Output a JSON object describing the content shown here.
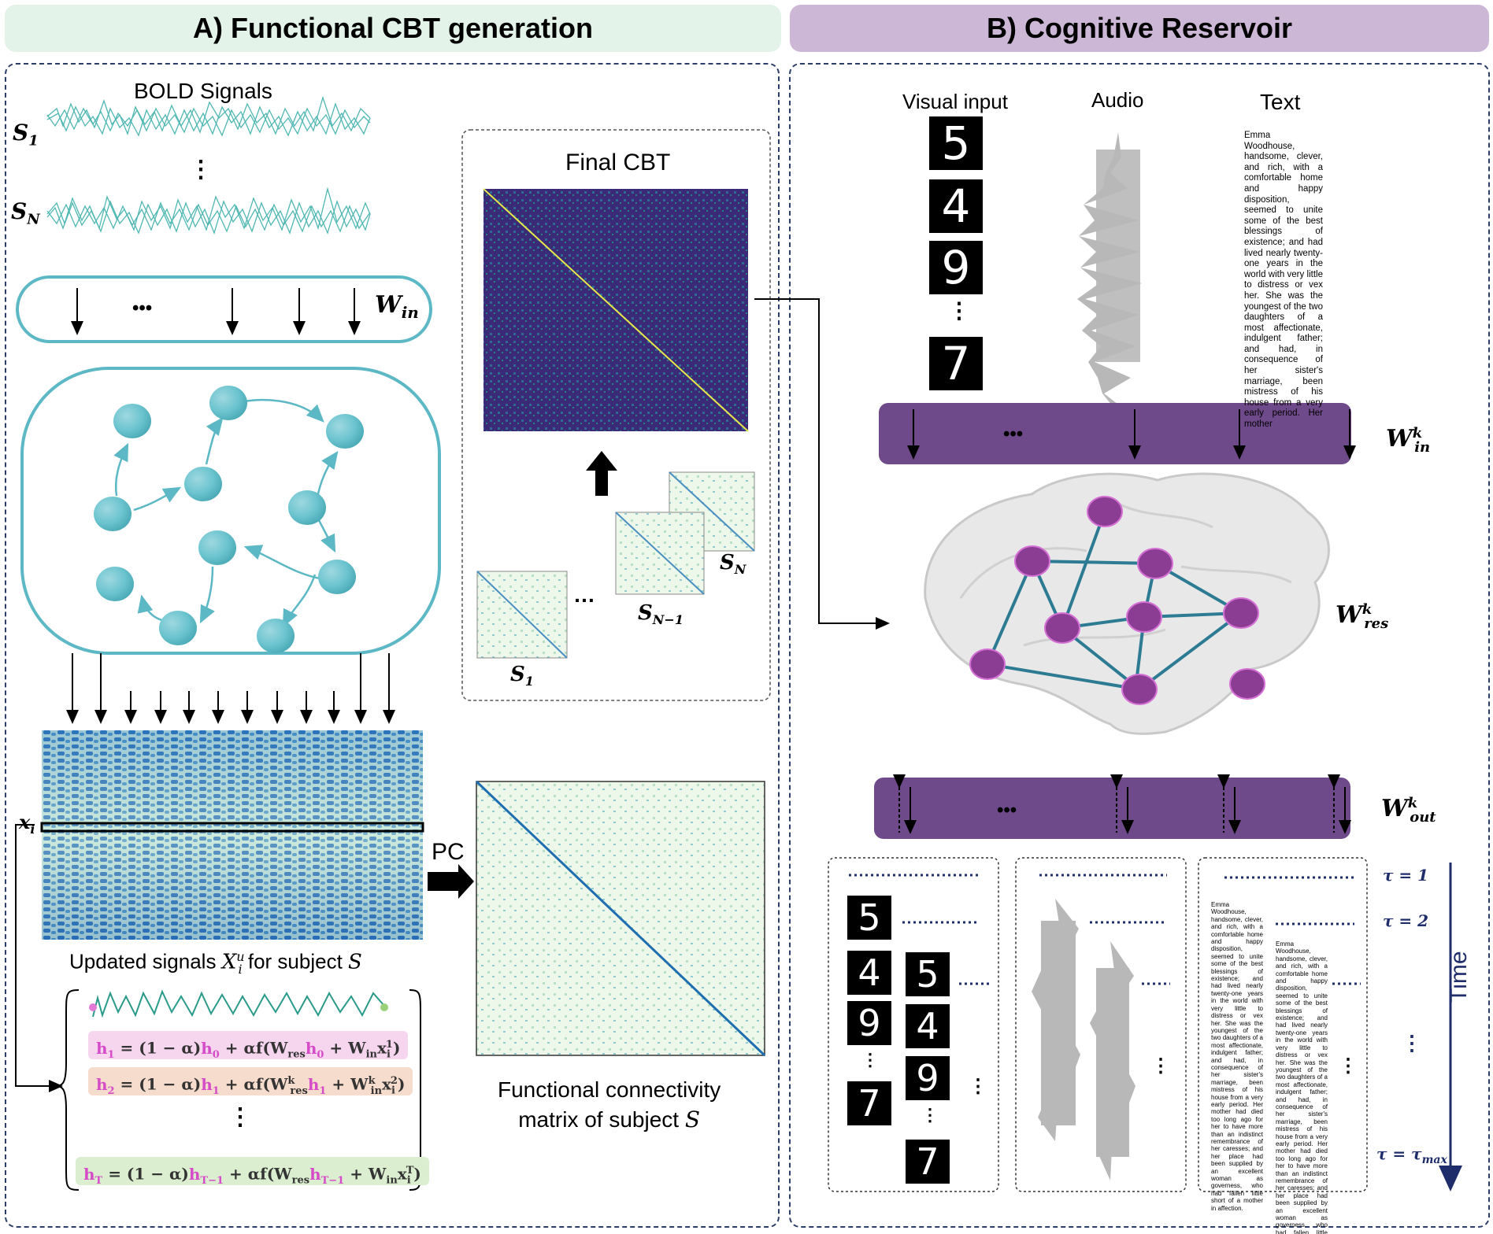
{
  "header_a": "A) Functional CBT generation",
  "header_b": "B) Cognitive Reservoir",
  "panel_a": {
    "bold_title": "BOLD Signals",
    "s1": "S",
    "s1_sub": "1",
    "sn": "S",
    "sn_sub": "N",
    "dots": "⋮",
    "win": "W",
    "win_sub": "in",
    "ellipsis": "•••",
    "xi": "x",
    "xi_sub": "i",
    "final_cbt": "Final CBT",
    "stack_s1": "S",
    "stack_s1_sub": "1",
    "stack_sn1": "S",
    "stack_sn1_sub": "N−1",
    "stack_sn": "S",
    "stack_sn_sub": "N",
    "stack_dots": "…",
    "pc": "PC",
    "updated_signals_a": "Updated signals ",
    "updated_signals_b": " for subject ",
    "updated_signals_X": "X",
    "updated_signals_sup": "u",
    "updated_signals_sub": "i",
    "updated_signals_S": "S",
    "fc_line1": "Functional connectivity",
    "fc_line2": "matrix of subject ",
    "fc_S": "S",
    "eq_dots": "⋮",
    "equations": [
      {
        "lhs": "h",
        "lhs_sub": "1",
        "mid": " = (1 − α)",
        "h": "h",
        "h_sub": "0",
        "rest": " + αf(W",
        "w_sub": "res",
        "h2": "h",
        "h2_sub": "0",
        "plus": " + W",
        "win_sub": "in",
        "x": "x",
        "x_sub": "i",
        "x_sup": "1",
        "close": ")"
      },
      {
        "lhs": "h",
        "lhs_sub": "2",
        "mid": " = (1 − α)",
        "h": "h",
        "h_sub": "1",
        "rest": " + αf(W",
        "w_sub": "res",
        "w_sup": "k",
        "h2": "h",
        "h2_sub": "1",
        "plus": " + W",
        "win_sub": "in",
        "win_sup": "k",
        "x": "x",
        "x_sub": "i",
        "x_sup": "2",
        "close": ")"
      },
      {
        "lhs": "h",
        "lhs_sub": "T",
        "mid": " = (1 − α)",
        "h": "h",
        "h_sub": "T−1",
        "rest": " + αf(W",
        "w_sub": "res",
        "h2": "h",
        "h2_sub": "T−1",
        "plus": " + W",
        "win_sub": "in",
        "x": "x",
        "x_sub": "i",
        "x_sup": "T",
        "close": ")"
      }
    ]
  },
  "panel_b": {
    "visual_input": "Visual input",
    "audio": "Audio",
    "text": "Text",
    "digits": [
      "5",
      "4",
      "9",
      "7"
    ],
    "digit_dots": "⋮",
    "text_passage": "Emma Woodhouse, handsome, clever, and rich, with a comfortable home and happy disposition, seemed to unite some of the best blessings of existence; and had lived nearly twenty-one years in the world with very little to distress or vex her. She was the youngest of the two daughters of a most affectionate, indulgent father; and had, in consequence of her sister's marriage, been mistress of his house from a very early period. Her mother",
    "text_passage_long": "Emma Woodhouse, handsome, clever, and rich, with a comfortable home and happy disposition, seemed to unite some of the best blessings of existence; and had lived nearly twenty-one years in the world with very little to distress or vex her. She was the youngest of the two daughters of a most affectionate, indulgent father; and had, in consequence of her sister's marriage, been mistress of his house from a very early period. Her mother had died too long ago for her to have more than an indistinct remembrance of her caresses; and her place had been supplied by an excellent woman as governess, who had fallen little short of a mother in affection.",
    "w_in": "W",
    "w_in_sup": "k",
    "w_in_sub": "in",
    "w_res": "W",
    "w_res_sup": "k",
    "w_res_sub": "res",
    "w_out": "W",
    "w_out_sup": "k",
    "w_out_sub": "out",
    "ellipsis": "•••",
    "tau1": "τ = 1",
    "tau2": "τ = 2",
    "tau_max": "τ = τ",
    "tau_max_sub": "max",
    "time": "Time",
    "vdots": "⋮"
  },
  "colors": {
    "teal": "#5bb8c4",
    "teal_dark": "#2f98a6",
    "purple": "#6f4a8a",
    "purple_node": "#8a3d93",
    "navy": "#1f2d6b",
    "header_a_bg": "#e3f3ea",
    "header_b_bg": "#ccb7d6",
    "eq1_bg": "#f6d6ef",
    "eq2_bg": "#f6dccd",
    "eqT_bg": "#dbefd0",
    "magenta": "#d64bc8",
    "olive": "#5b7a2a"
  }
}
